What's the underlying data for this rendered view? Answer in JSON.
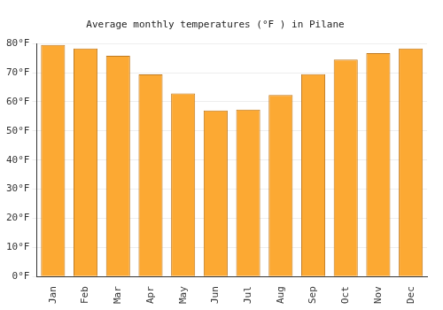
{
  "chart_data": {
    "type": "bar",
    "title": "Average monthly temperatures (°F ) in Pilane",
    "categories": [
      "Jan",
      "Feb",
      "Mar",
      "Apr",
      "May",
      "Jun",
      "Jul",
      "Aug",
      "Sep",
      "Oct",
      "Nov",
      "Dec"
    ],
    "values": [
      79.5,
      78.3,
      75.8,
      69.4,
      62.9,
      57.0,
      57.3,
      62.3,
      69.5,
      74.5,
      76.7,
      78.3
    ],
    "color": "#fca933",
    "ylim": [
      0,
      80
    ],
    "yticks": [
      {
        "value": 0,
        "label": "0°F"
      },
      {
        "value": 10,
        "label": "10°F"
      },
      {
        "value": 20,
        "label": "20°F"
      },
      {
        "value": 30,
        "label": "30°F"
      },
      {
        "value": 40,
        "label": "40°F"
      },
      {
        "value": 50,
        "label": "50°F"
      },
      {
        "value": 60,
        "label": "60°F"
      },
      {
        "value": 70,
        "label": "70°F"
      },
      {
        "value": 80,
        "label": "80°F"
      }
    ],
    "grid": true
  }
}
